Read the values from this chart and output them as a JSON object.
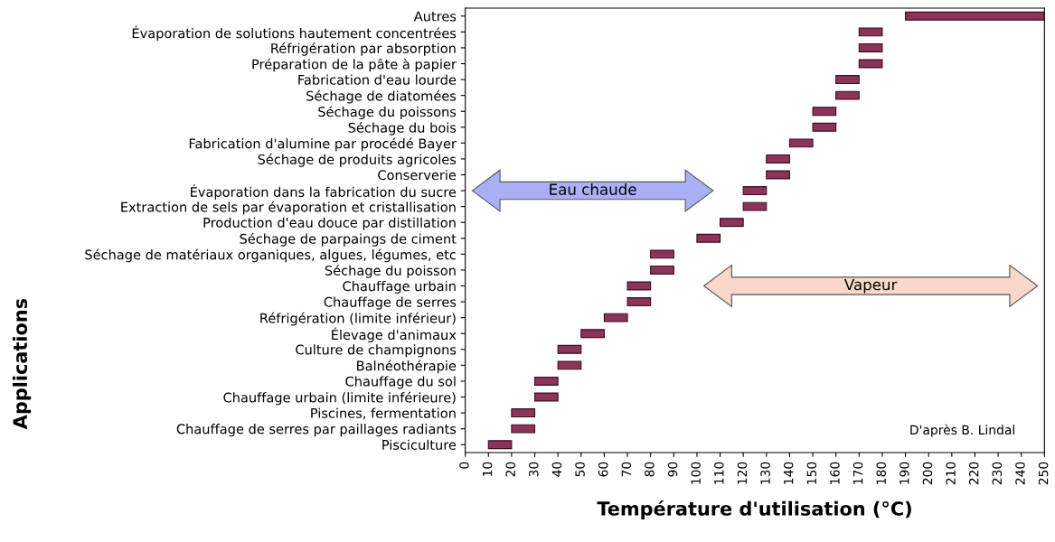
{
  "chart_data": {
    "type": "bar",
    "orientation": "horizontal",
    "categories": [
      "Autres",
      "Évaporation de solutions hautement concentrées",
      "Réfrigération par absorption",
      "Préparation de la pâte à papier",
      "Fabrication d'eau lourde",
      "Séchage de diatomées",
      "Séchage du poissons",
      "Séchage du bois",
      "Fabrication d'alumine par procédé Bayer",
      "Séchage de produits agricoles",
      "Conserverie",
      "Évaporation dans la fabrication du sucre",
      "Extraction de sels par évaporation et cristallisation",
      "Production d'eau douce par distillation",
      "Séchage de parpaings de ciment",
      "Séchage de matériaux organiques, algues, légumes, etc",
      "Séchage du poisson",
      "Chauffage urbain",
      "Chauffage de serres",
      "Réfrigération (limite inférieur)",
      "Élevage d'animaux",
      "Culture de champignons",
      "Balnéothérapie",
      "Chauffage du sol",
      "Chauffage urbain (limite inférieure)",
      "Piscines, fermentation",
      "Chauffage de serres par paillages radiants",
      "Pisciculture"
    ],
    "base": [
      190,
      170,
      170,
      170,
      160,
      160,
      150,
      150,
      140,
      130,
      130,
      120,
      120,
      110,
      100,
      80,
      80,
      70,
      70,
      60,
      50,
      40,
      40,
      30,
      30,
      20,
      20,
      10
    ],
    "values": [
      60,
      10,
      10,
      10,
      10,
      10,
      10,
      10,
      10,
      10,
      10,
      10,
      10,
      10,
      10,
      10,
      10,
      10,
      10,
      10,
      10,
      10,
      10,
      10,
      10,
      10,
      10,
      10
    ],
    "color": "#8b3358",
    "xlabel": "Température d'utilisation (°C)",
    "ylabel": "Applications",
    "xlim": [
      0,
      250
    ],
    "xticks": [
      0,
      10,
      20,
      30,
      40,
      50,
      60,
      70,
      80,
      90,
      100,
      110,
      120,
      130,
      140,
      150,
      160,
      170,
      180,
      190,
      200,
      210,
      220,
      230,
      240,
      250
    ],
    "grid": false,
    "annotations": [
      "Eau chaude",
      "Vapeur",
      "D'après B. Lindal"
    ]
  }
}
